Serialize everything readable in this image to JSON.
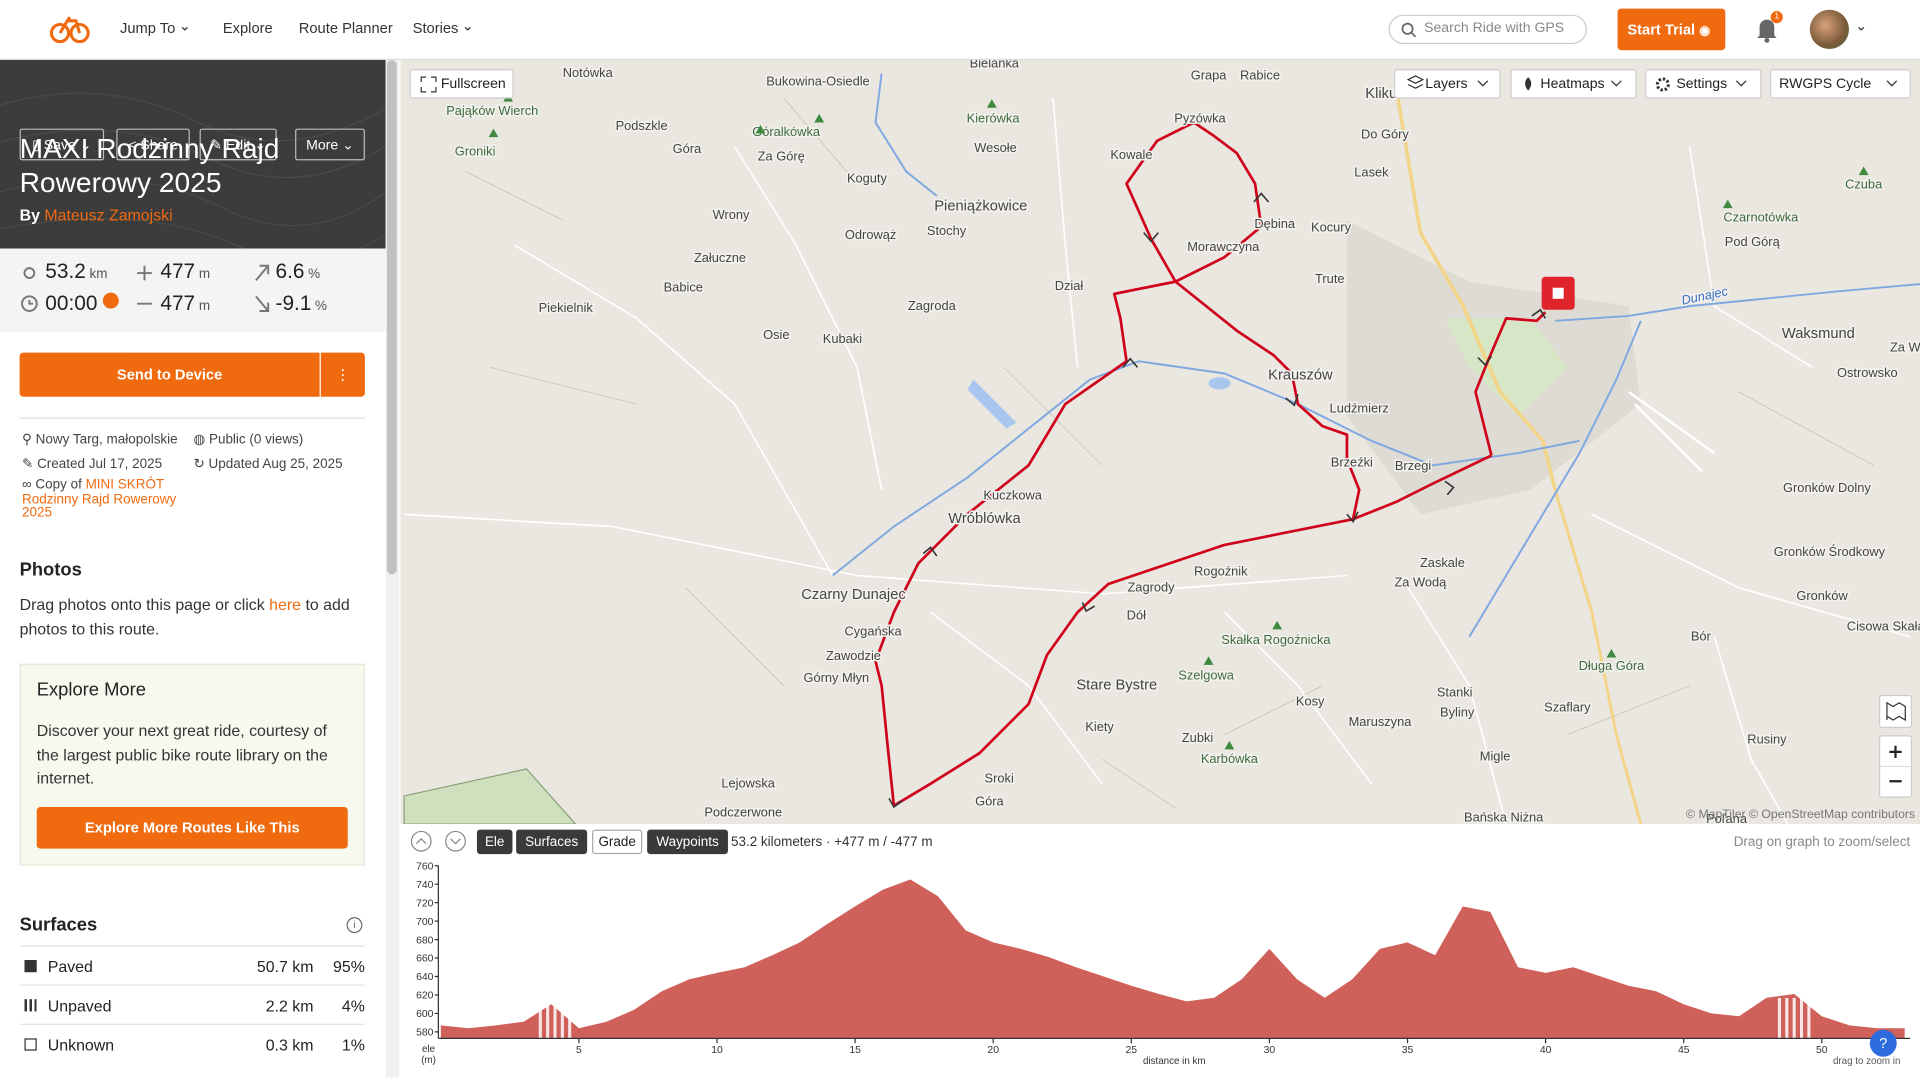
{
  "nav": {
    "links": [
      "Jump To",
      "Explore",
      "Route Planner",
      "Stories"
    ],
    "search": "Search Ride with GPS",
    "start_trial": "Start Trial",
    "notification_count": "1"
  },
  "actions": [
    "Save",
    "Share",
    "Edit",
    "More"
  ],
  "route": {
    "title": "MAXI Rodzinny Rajd Rowerowy 2025",
    "by": "By",
    "author": "Mateusz Zamojski"
  },
  "stats": [
    {
      "value": "53.2",
      "unit": "km"
    },
    {
      "value": "477",
      "unit": "m"
    },
    {
      "value": "6.6",
      "unit": "%"
    },
    {
      "value": "00:00"
    },
    {
      "value": "477",
      "unit": "m"
    },
    {
      "value": "-9.1",
      "unit": "%"
    }
  ],
  "send_to_device": "Send to Device",
  "details": {
    "location": "Nowy Targ, małopolskie",
    "visibility": "Public (0 views)",
    "created": "Created Jul 17, 2025",
    "updated": "Updated Aug 25, 2025",
    "copy_of": "Copy of",
    "source_route": "MINI SKRÓT Rodzinny Rajd Rowerowy 2025"
  },
  "photos": {
    "heading": "Photos",
    "text_before": "Drag photos onto this page or click",
    "link": "here",
    "text_after": "to add photos to this route."
  },
  "explore": {
    "heading": "Explore More",
    "text": "Discover your next great ride, courtesy of the largest public bike route library on the internet.",
    "button": "Explore More Routes Like This"
  },
  "surfaces": {
    "heading": "Surfaces",
    "rows": [
      [
        "Paved",
        "50.7 km",
        "95%"
      ],
      [
        "Unpaved",
        "2.2 km",
        "4%"
      ],
      [
        "Unknown",
        "0.3 km",
        "1%"
      ]
    ]
  },
  "map": {
    "controls": {
      "fullscreen": "Fullscreen",
      "layers": "Layers",
      "heatmaps": "Heatmaps",
      "settings": "Settings",
      "style": "RWGPS Cycle"
    },
    "attribution": "© MapTiler © OpenStreetMap contributors",
    "labels": [
      "Notówka",
      "Bielanka",
      "Bukowina-Osiedle",
      "Grapa",
      "Rabice",
      "Kliku",
      "Pająków Wierch",
      "Góralkówka",
      "Kierówka",
      "Pyzówka",
      "Do Góry",
      "Podszkle",
      "Groniki",
      "Góra",
      "Za Górę",
      "Wesołe",
      "Kowale",
      "Lasek",
      "Czuba",
      "Koguty",
      "Pieniążkowice",
      "Dębina",
      "Kocury",
      "Czarnotówka",
      "Wrony",
      "Odrowąż",
      "Stochy",
      "Morawczyna",
      "Pod Górą",
      "Załuczne",
      "Trute",
      "Babice",
      "Dział",
      "Piekielnik",
      "Zagroda",
      "Dunajec",
      "Osie",
      "Kubaki",
      "Waksmund",
      "Za W",
      "Krauszów",
      "Ostrowsko",
      "Ludźmierz",
      "Brzeźki",
      "Brzegi",
      "Kuczkowa",
      "Gronków Dolny",
      "Wróblówka",
      "Gronków Środkowy",
      "Zaskale",
      "Za Wodą",
      "Rogoźnik",
      "Czarny Dunajec",
      "Zagrody",
      "Gronków",
      "Cisowa Skała",
      "Dół",
      "Cygańska",
      "Skałka Rogoźnicka",
      "Zawodzie",
      "Bór",
      "Szelgowa",
      "Długa Góra",
      "Górny Młyn",
      "Stare Bystre",
      "Stanki",
      "Kosy",
      "Szaflary",
      "Byliny",
      "Maruszyna",
      "Kiety",
      "Zubki",
      "Rusiny",
      "Karbówka",
      "Migle",
      "Lejowska",
      "Sroki",
      "Góra",
      "Podczerwone",
      "Bańska Niżna",
      "Poľana"
    ]
  },
  "profile": {
    "tabs": [
      "Ele",
      "Surfaces",
      "Grade",
      "Waypoints"
    ],
    "summary": "53.2 kilometers · +477 m / -477 m",
    "hint": "Drag on graph to zoom/select"
  },
  "chart_data": {
    "type": "area",
    "color": "#d0605a",
    "x_label": "distance in km",
    "y_label": "ele",
    "y_unit": "(m)",
    "zoom_hint": "drag to zoom in",
    "x": [
      0,
      1,
      2,
      3,
      4,
      5,
      6,
      7,
      8,
      9,
      10,
      11,
      12,
      13,
      14,
      15,
      16,
      17,
      18,
      19,
      20,
      21,
      22,
      23,
      24,
      25,
      26,
      27,
      28,
      29,
      30,
      31,
      32,
      33,
      34,
      35,
      36,
      37,
      38,
      39,
      40,
      41,
      42,
      43,
      44,
      45,
      46,
      47,
      48,
      49,
      50,
      51,
      52,
      53
    ],
    "values": [
      587,
      584,
      587,
      591,
      610,
      584,
      591,
      604,
      624,
      637,
      644,
      650,
      663,
      677,
      697,
      716,
      734,
      745,
      727,
      690,
      677,
      670,
      661,
      650,
      640,
      630,
      621,
      613,
      617,
      637,
      670,
      637,
      617,
      637,
      670,
      677,
      663,
      716,
      710,
      650,
      644,
      650,
      640,
      630,
      624,
      610,
      600,
      597,
      617,
      621,
      597,
      587,
      584,
      584
    ],
    "xlim": [
      0,
      53.2
    ],
    "ylim": [
      573,
      760
    ],
    "xticks": [
      5,
      10,
      15,
      20,
      25,
      30,
      35,
      40,
      45,
      50
    ],
    "yticks": [
      580,
      600,
      620,
      640,
      660,
      680,
      700,
      720,
      740,
      760
    ]
  }
}
